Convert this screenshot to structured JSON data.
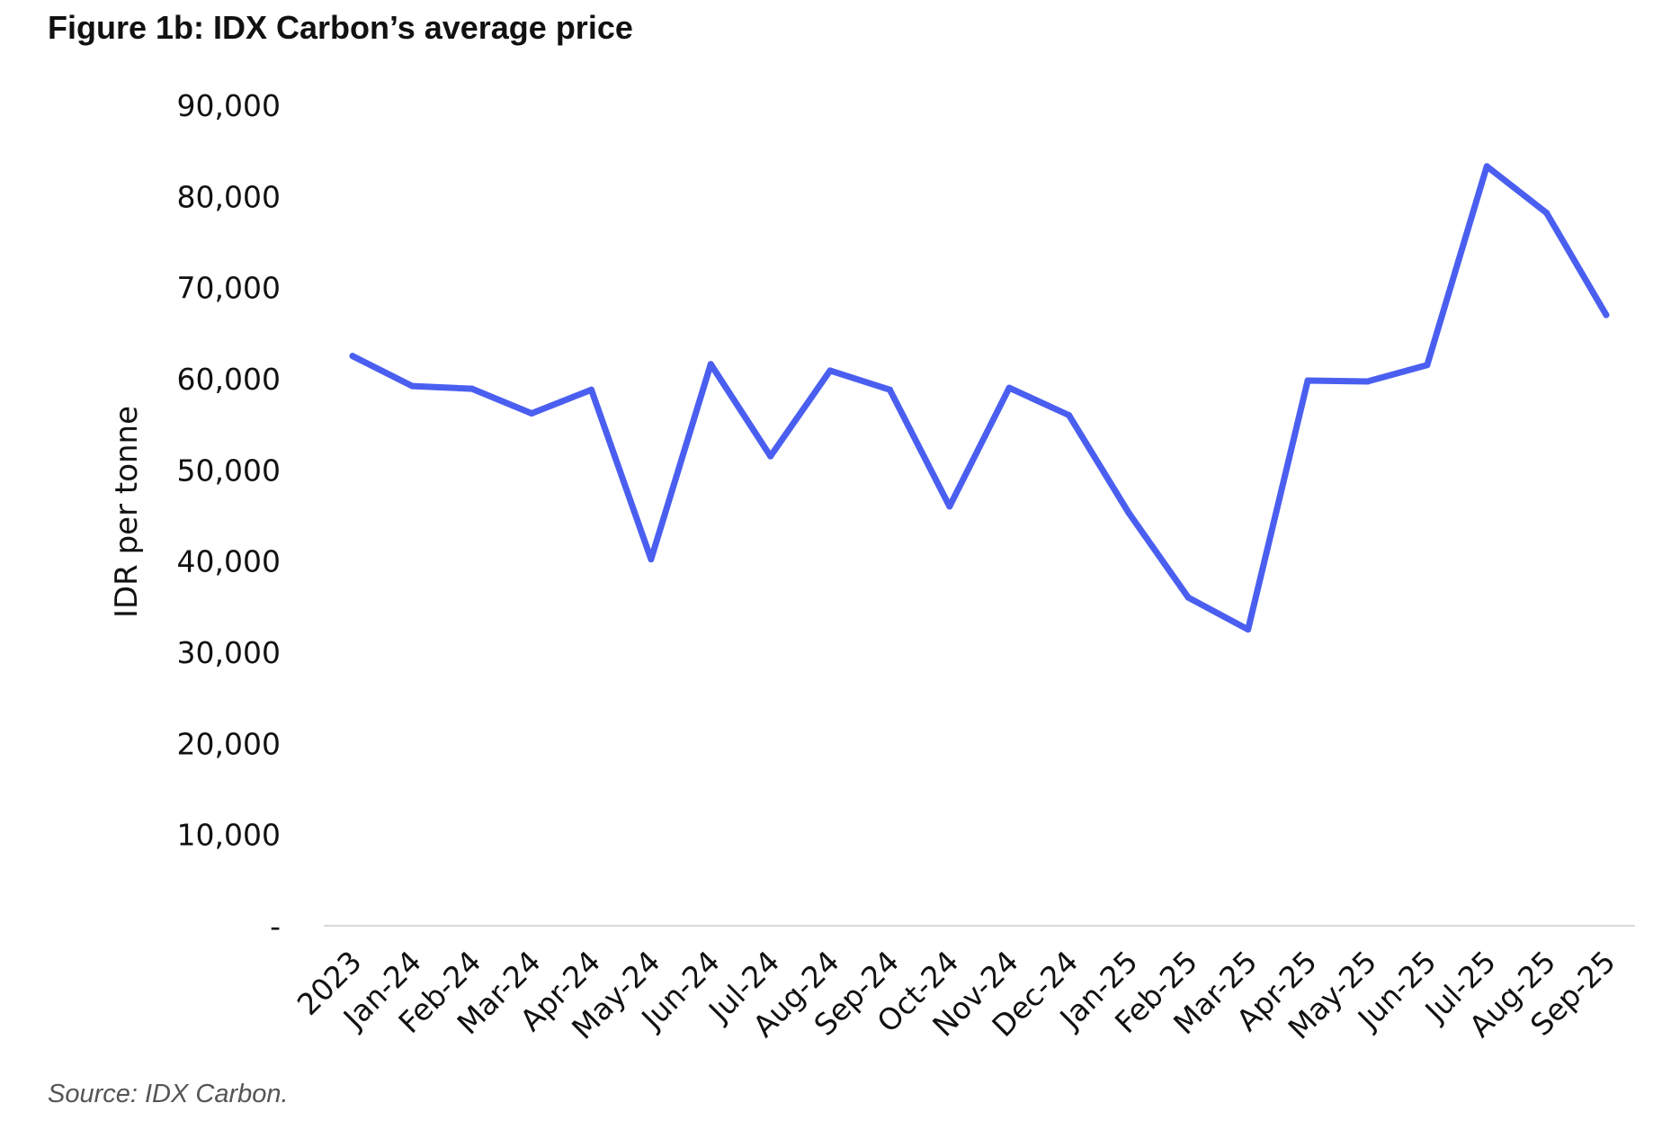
{
  "figure": {
    "title": "Figure 1b: IDX Carbon’s average price",
    "source": "Source: IDX Carbon."
  },
  "chart_data": {
    "type": "line",
    "title": "Figure 1b: IDX Carbon’s average price",
    "xlabel": "",
    "ylabel": "IDR per tonne",
    "ylim": [
      0,
      90000
    ],
    "yticks": [
      0,
      10000,
      20000,
      30000,
      40000,
      50000,
      60000,
      70000,
      80000,
      90000
    ],
    "ytick_labels": [
      "-",
      "10,000",
      "20,000",
      "30,000",
      "40,000",
      "50,000",
      "60,000",
      "70,000",
      "80,000",
      "90,000"
    ],
    "grid": false,
    "legend": "none",
    "line_color": "#4a5ff0",
    "categories": [
      "2023",
      "Jan-24",
      "Feb-24",
      "Mar-24",
      "Apr-24",
      "May-24",
      "Jun-24",
      "Jul-24",
      "Aug-24",
      "Sep-24",
      "Oct-24",
      "Nov-24",
      "Dec-24",
      "Jan-25",
      "Feb-25",
      "Mar-25",
      "Apr-25",
      "May-25",
      "Jun-25",
      "Jul-25",
      "Aug-25",
      "Sep-25"
    ],
    "series": [
      {
        "values": [
          62500,
          59200,
          58900,
          56200,
          58800,
          40200,
          61600,
          51500,
          60900,
          58800,
          46000,
          59000,
          56000,
          45300,
          36000,
          32500,
          59800,
          59700,
          61500,
          83300,
          78200,
          67000
        ]
      }
    ]
  }
}
